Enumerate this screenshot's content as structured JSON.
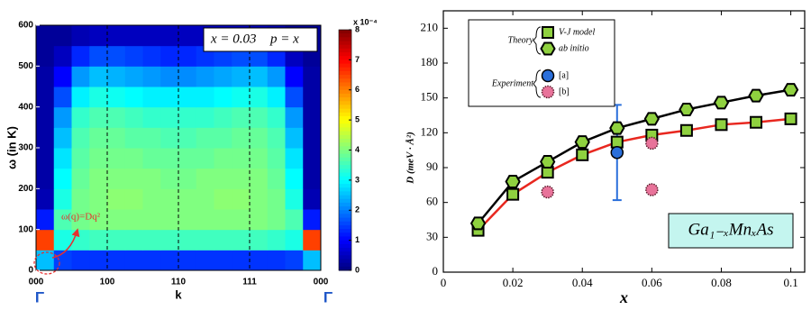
{
  "chart_data": [
    {
      "type": "heatmap",
      "ylabel": "ω (in K)",
      "xlabel": "k",
      "xlim": [
        0,
        4
      ],
      "ylim": [
        0,
        600
      ],
      "xticks": [
        {
          "value": 0,
          "label": "000"
        },
        {
          "value": 1,
          "label": "100"
        },
        {
          "value": 2,
          "label": "110"
        },
        {
          "value": 3,
          "label": "111"
        },
        {
          "value": 4,
          "label": "000"
        }
      ],
      "yticks": [
        0,
        100,
        200,
        300,
        400,
        500,
        600
      ],
      "symmetry_labels": [
        {
          "value": 0,
          "label": "Γ"
        },
        {
          "value": 4,
          "label": "Γ"
        }
      ],
      "annotations": [
        "x = 0.03",
        "p = x",
        "ω(q)=Dq²"
      ],
      "colormap": "jet",
      "colorbar": {
        "label": "x 10⁻⁴",
        "lim": [
          0,
          8
        ],
        "ticks": [
          0,
          1,
          2,
          3,
          4,
          5,
          6,
          7,
          8
        ]
      },
      "xbins": [
        0,
        0.25,
        0.5,
        0.75,
        1,
        1.25,
        1.5,
        1.75,
        2,
        2.25,
        2.5,
        2.75,
        3,
        3.25,
        3.5,
        3.75,
        4
      ],
      "ybins": [
        0,
        50,
        100,
        150,
        200,
        250,
        300,
        350,
        400,
        450,
        500,
        550,
        600
      ],
      "z": [
        [
          2.5,
          1.5,
          1.4,
          1.4,
          1.4,
          1.4,
          1.4,
          1.4,
          1.4,
          1.4,
          1.4,
          1.4,
          1.4,
          1.4,
          1.5,
          2.5
        ],
        [
          6.5,
          3.2,
          3.4,
          3.5,
          3.5,
          3.5,
          3.5,
          3.5,
          3.5,
          3.5,
          3.5,
          3.5,
          3.5,
          3.4,
          3.2,
          6.5
        ],
        [
          1.2,
          3.6,
          3.9,
          4,
          4,
          4,
          4,
          4,
          4,
          4,
          4,
          4,
          4,
          3.9,
          3.6,
          1.2
        ],
        [
          0.4,
          3.2,
          3.9,
          4,
          4.1,
          4.1,
          4,
          4,
          4,
          4,
          4.1,
          4.1,
          4,
          3.9,
          3.2,
          0.4
        ],
        [
          0.3,
          3,
          3.8,
          4,
          4,
          4,
          4,
          3.9,
          3.9,
          4,
          4,
          4,
          4,
          3.8,
          3,
          0.3
        ],
        [
          0.3,
          2.8,
          3.7,
          3.9,
          3.9,
          3.9,
          3.8,
          3.8,
          3.8,
          3.8,
          3.9,
          3.9,
          3.9,
          3.7,
          2.8,
          0.3
        ],
        [
          0.3,
          2.5,
          3.6,
          3.8,
          3.8,
          3.7,
          3.7,
          3.6,
          3.6,
          3.7,
          3.7,
          3.8,
          3.8,
          3.6,
          2.5,
          0.3
        ],
        [
          0.3,
          2.2,
          3.4,
          3.6,
          3.6,
          3.5,
          3.4,
          3.4,
          3.4,
          3.4,
          3.5,
          3.6,
          3.6,
          3.4,
          2.2,
          0.3
        ],
        [
          0.3,
          1.6,
          2.9,
          3.2,
          3.1,
          3,
          2.9,
          2.9,
          2.9,
          2.9,
          3,
          3.1,
          3.2,
          2.9,
          1.6,
          0.3
        ],
        [
          0.3,
          1,
          2.2,
          2.5,
          2.4,
          2.3,
          2.2,
          2.1,
          2.1,
          2.2,
          2.3,
          2.4,
          2.5,
          2.2,
          1,
          0.3
        ],
        [
          0.2,
          0.5,
          1.3,
          1.6,
          1.6,
          1.5,
          1.4,
          1.3,
          1.3,
          1.4,
          1.5,
          1.6,
          1.6,
          1.3,
          0.5,
          0.2
        ],
        [
          0.2,
          0.2,
          0.4,
          0.5,
          0.5,
          0.5,
          0.5,
          0.5,
          0.5,
          0.5,
          0.5,
          0.5,
          0.5,
          0.4,
          0.2,
          0.2
        ]
      ]
    },
    {
      "type": "scatter",
      "xlabel": "x",
      "ylabel": "D (meV · Å²)",
      "xlim": [
        0,
        0.104
      ],
      "ylim": [
        0,
        225
      ],
      "xticks": [
        0,
        0.02,
        0.04,
        0.06,
        0.08,
        0.1
      ],
      "yticks": [
        0,
        30,
        60,
        90,
        120,
        150,
        180,
        210
      ],
      "annotation": "Ga₁₋ₓMnₓAs",
      "legend": "top-left",
      "groups": [
        {
          "name": "Theory",
          "series": [
            {
              "name": "V-J model",
              "marker": "square",
              "color": "#8fd13f",
              "line_color": "#e8271f",
              "x": [
                0.01,
                0.02,
                0.03,
                0.04,
                0.05,
                0.06,
                0.07,
                0.08,
                0.09,
                0.1
              ],
              "values": [
                36,
                67,
                86,
                101,
                112,
                118,
                122,
                127,
                129,
                132
              ]
            },
            {
              "name": "ab initio",
              "marker": "hexagon",
              "color": "#8fd13f",
              "line_color": "#000000",
              "x": [
                0.01,
                0.02,
                0.03,
                0.04,
                0.05,
                0.06,
                0.07,
                0.08,
                0.09,
                0.1
              ],
              "values": [
                42,
                78,
                95,
                112,
                124,
                132,
                140,
                146,
                152,
                157
              ]
            }
          ]
        },
        {
          "name": "Experiment",
          "series": [
            {
              "name": "[a]",
              "marker": "circle",
              "color": "#2a6fdb",
              "x": [
                0.05
              ],
              "values": [
                103
              ],
              "errors": [
                41
              ]
            },
            {
              "name": "[b]",
              "marker": "circle",
              "color": "#e8739a",
              "x": [
                0.03,
                0.06,
                0.06
              ],
              "values": [
                69,
                111,
                71
              ]
            }
          ]
        }
      ]
    }
  ]
}
